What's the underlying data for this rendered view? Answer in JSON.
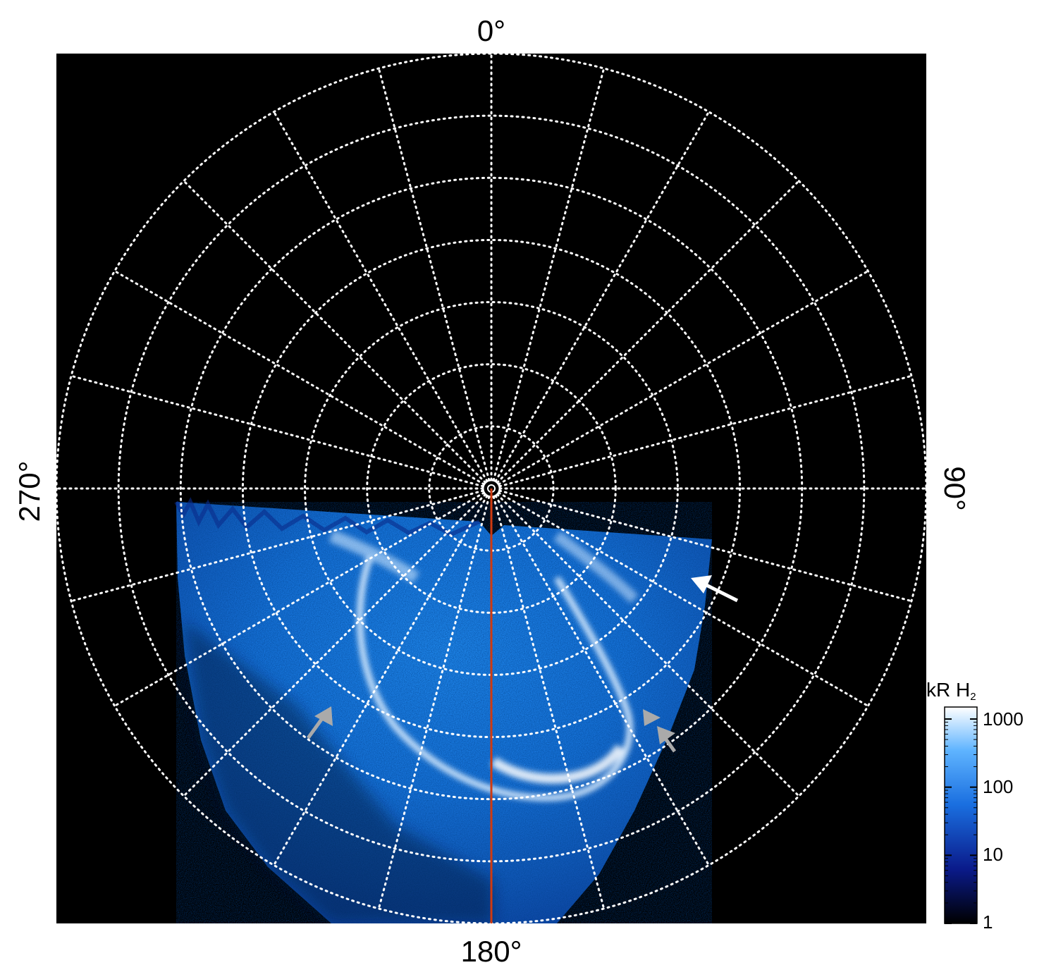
{
  "labels": {
    "top": "0°",
    "right": "90°",
    "bottom": "180°",
    "left": "270°"
  },
  "colorbar": {
    "title_prefix": "kR H",
    "title_subscript": "2",
    "ticks": [
      "1000",
      "100",
      "10",
      "1"
    ],
    "scale": "log",
    "range": [
      1,
      1500
    ]
  },
  "colors": {
    "background": "#000000",
    "grid": "#ffffff",
    "meridian_line": "#d03a10",
    "arrow_white": "#ffffff",
    "arrow_gray": "#aaaaaa",
    "aurora_dark": "#0a1a7a",
    "aurora_mid": "#1a7ae6",
    "aurora_bright": "#e8f4ff"
  },
  "grid": {
    "latitude_rings": 7,
    "longitude_step_deg": 15
  },
  "annotations": {
    "white_arrows": 1,
    "gray_arrows": 3
  }
}
